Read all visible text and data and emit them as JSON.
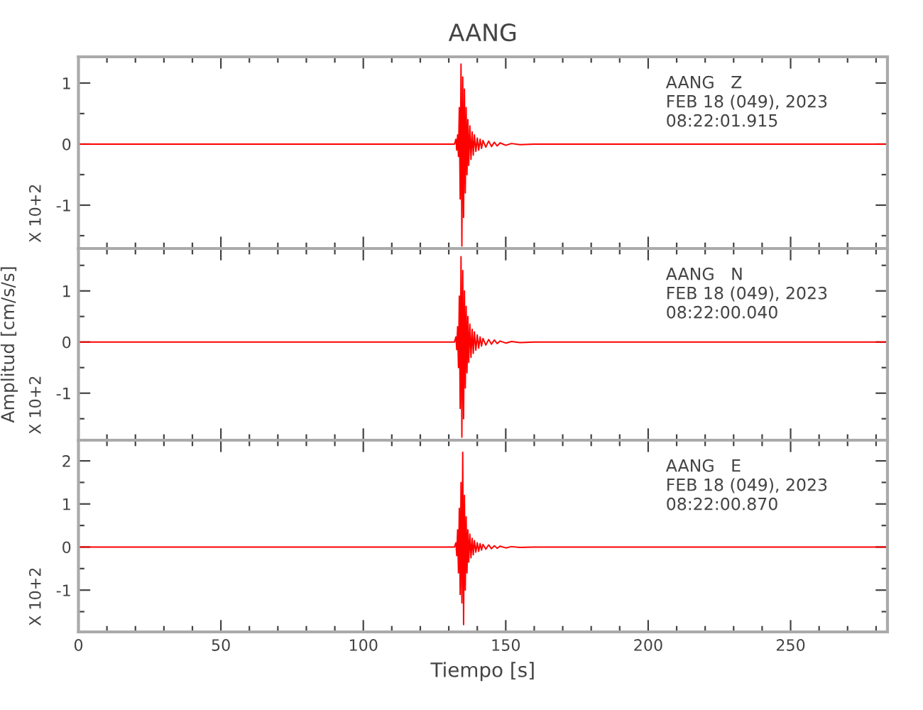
{
  "chart_data": [
    {
      "type": "line",
      "title": "AANG",
      "xlim": [
        0,
        284
      ],
      "ylim": [
        -1.71,
        1.43
      ],
      "tick_labels": "y",
      "xticks": [
        0,
        {
          "value": 10,
          "label": null
        },
        {
          "value": 20,
          "label": null
        },
        {
          "value": 30,
          "label": null
        },
        {
          "value": 40,
          "label": null
        },
        50,
        {
          "value": 60,
          "label": null
        },
        {
          "value": 70,
          "label": null
        },
        {
          "value": 80,
          "label": null
        },
        {
          "value": 90,
          "label": null
        },
        100,
        {
          "value": 110,
          "label": null
        },
        {
          "value": 120,
          "label": null
        },
        {
          "value": 130,
          "label": null
        },
        {
          "value": 140,
          "label": null
        },
        150,
        {
          "value": 160,
          "label": null
        },
        {
          "value": 170,
          "label": null
        },
        {
          "value": 180,
          "label": null
        },
        {
          "value": 190,
          "label": null
        },
        200,
        {
          "value": 210,
          "label": null
        },
        {
          "value": 220,
          "label": null
        },
        {
          "value": 230,
          "label": null
        },
        {
          "value": 240,
          "label": null
        },
        250,
        {
          "value": 260,
          "label": null
        },
        {
          "value": 270,
          "label": null
        },
        {
          "value": 280,
          "label": null
        }
      ],
      "yticks": [
        {
          "value": -1.5,
          "label": null
        },
        -1,
        {
          "value": -0.5,
          "label": null
        },
        0,
        {
          "value": 0.5,
          "label": null
        },
        1
      ],
      "annotations": [
        "AANG   Z",
        "FEB 18 (049), 2023",
        "08:22:01.915",
        "X 10+2"
      ],
      "series": [
        {
          "color": "#ff0000",
          "x": [
            0,
            132,
            132.5,
            132.8,
            133.1,
            133.4,
            133.7,
            134.0,
            134.3,
            134.6,
            134.9,
            135.2,
            135.5,
            135.8,
            136.1,
            136.4,
            136.7,
            137.0,
            137.4,
            137.8,
            138.2,
            138.6,
            139,
            139.5,
            140,
            140.5,
            141,
            141.5,
            142,
            143,
            144,
            145,
            146,
            147,
            148,
            150,
            152,
            155,
            160,
            284
          ],
          "values": [
            0,
            0,
            0.08,
            -0.1,
            0.15,
            -0.2,
            0.6,
            -0.9,
            1.31,
            -1.67,
            1.1,
            -1.2,
            0.9,
            -0.8,
            0.6,
            -0.5,
            0.4,
            -0.35,
            0.3,
            -0.25,
            0.2,
            -0.18,
            0.15,
            -0.12,
            0.1,
            -0.1,
            0.08,
            -0.07,
            0.06,
            -0.05,
            0.05,
            -0.04,
            0.03,
            -0.03,
            0.02,
            -0.02,
            0.01,
            -0.01,
            0,
            0
          ]
        }
      ]
    },
    {
      "type": "line",
      "ylabel": "Amplitud [cm/s/s]",
      "xlim": [
        0,
        284
      ],
      "ylim": [
        -1.92,
        1.83
      ],
      "tick_labels": "y",
      "xticks": [
        0,
        {
          "value": 10,
          "label": null
        },
        {
          "value": 20,
          "label": null
        },
        {
          "value": 30,
          "label": null
        },
        {
          "value": 40,
          "label": null
        },
        50,
        {
          "value": 60,
          "label": null
        },
        {
          "value": 70,
          "label": null
        },
        {
          "value": 80,
          "label": null
        },
        {
          "value": 90,
          "label": null
        },
        100,
        {
          "value": 110,
          "label": null
        },
        {
          "value": 120,
          "label": null
        },
        {
          "value": 130,
          "label": null
        },
        {
          "value": 140,
          "label": null
        },
        150,
        {
          "value": 160,
          "label": null
        },
        {
          "value": 170,
          "label": null
        },
        {
          "value": 180,
          "label": null
        },
        {
          "value": 190,
          "label": null
        },
        200,
        {
          "value": 210,
          "label": null
        },
        {
          "value": 220,
          "label": null
        },
        {
          "value": 230,
          "label": null
        },
        {
          "value": 240,
          "label": null
        },
        250,
        {
          "value": 260,
          "label": null
        },
        {
          "value": 270,
          "label": null
        },
        {
          "value": 280,
          "label": null
        }
      ],
      "yticks": [
        {
          "value": -1.5,
          "label": null
        },
        -1,
        {
          "value": -0.5,
          "label": null
        },
        0,
        {
          "value": 0.5,
          "label": null
        },
        1,
        {
          "value": 1.5,
          "label": null
        }
      ],
      "annotations": [
        "AANG   N",
        "FEB 18 (049), 2023",
        "08:22:00.040",
        "X 10+2"
      ],
      "series": [
        {
          "color": "#ff0000",
          "x": [
            0,
            132,
            132.5,
            132.8,
            133.1,
            133.4,
            133.7,
            134.0,
            134.3,
            134.6,
            134.9,
            135.2,
            135.5,
            135.8,
            136.1,
            136.4,
            136.7,
            137.0,
            137.4,
            137.8,
            138.2,
            138.6,
            139,
            139.5,
            140,
            140.5,
            141,
            141.5,
            142,
            143,
            144,
            145,
            146,
            147,
            148,
            150,
            152,
            155,
            160,
            284
          ],
          "values": [
            0,
            0,
            0.1,
            -0.15,
            0.3,
            -0.5,
            0.9,
            -1.3,
            1.67,
            -1.86,
            1.4,
            -1.5,
            1.0,
            -0.9,
            0.7,
            -0.6,
            0.5,
            -0.4,
            0.35,
            -0.3,
            0.25,
            -0.22,
            0.2,
            -0.16,
            0.14,
            -0.12,
            0.1,
            -0.08,
            0.07,
            -0.06,
            0.05,
            -0.04,
            0.04,
            -0.03,
            0.02,
            -0.02,
            0.01,
            -0.01,
            0,
            0
          ]
        }
      ]
    },
    {
      "type": "line",
      "xlabel": "Tiempo [s]",
      "xlim": [
        0,
        284
      ],
      "ylim": [
        -1.97,
        2.48
      ],
      "xticks": [
        0,
        {
          "value": 10,
          "label": null
        },
        {
          "value": 20,
          "label": null
        },
        {
          "value": 30,
          "label": null
        },
        {
          "value": 40,
          "label": null
        },
        50,
        {
          "value": 60,
          "label": null
        },
        {
          "value": 70,
          "label": null
        },
        {
          "value": 80,
          "label": null
        },
        {
          "value": 90,
          "label": null
        },
        100,
        {
          "value": 110,
          "label": null
        },
        {
          "value": 120,
          "label": null
        },
        {
          "value": 130,
          "label": null
        },
        {
          "value": 140,
          "label": null
        },
        150,
        {
          "value": 160,
          "label": null
        },
        {
          "value": 170,
          "label": null
        },
        {
          "value": 180,
          "label": null
        },
        {
          "value": 190,
          "label": null
        },
        200,
        {
          "value": 210,
          "label": null
        },
        {
          "value": 220,
          "label": null
        },
        {
          "value": 230,
          "label": null
        },
        {
          "value": 240,
          "label": null
        },
        250,
        {
          "value": 260,
          "label": null
        },
        {
          "value": 270,
          "label": null
        },
        {
          "value": 280,
          "label": null
        }
      ],
      "yticks": [
        {
          "value": -1.5,
          "label": null
        },
        -1,
        {
          "value": -0.5,
          "label": null
        },
        0,
        {
          "value": 0.5,
          "label": null
        },
        1,
        {
          "value": 1.5,
          "label": null
        },
        2
      ],
      "annotations": [
        "AANG   E",
        "FEB 18 (049), 2023",
        "08:22:00.870",
        "X 10+2"
      ],
      "series": [
        {
          "color": "#ff0000",
          "x": [
            0,
            132,
            132.5,
            132.8,
            133.1,
            133.4,
            133.7,
            134.0,
            134.3,
            134.6,
            134.9,
            135.2,
            135.5,
            135.8,
            136.1,
            136.4,
            136.7,
            137.0,
            137.4,
            137.8,
            138.2,
            138.6,
            139,
            139.5,
            140,
            140.5,
            141,
            141.5,
            142,
            143,
            144,
            145,
            146,
            147,
            148,
            150,
            152,
            155,
            160,
            284
          ],
          "values": [
            0,
            0,
            0.1,
            -0.2,
            0.4,
            -0.6,
            0.9,
            -1.1,
            1.5,
            -1.3,
            2.2,
            -1.8,
            1.2,
            -1.0,
            0.7,
            -0.6,
            0.4,
            -0.35,
            0.3,
            -0.25,
            0.2,
            -0.18,
            0.15,
            -0.12,
            0.1,
            -0.1,
            0.08,
            -0.07,
            0.06,
            -0.05,
            0.05,
            -0.04,
            0.03,
            -0.03,
            0.02,
            -0.02,
            0.01,
            -0.01,
            0,
            0
          ]
        }
      ]
    }
  ]
}
